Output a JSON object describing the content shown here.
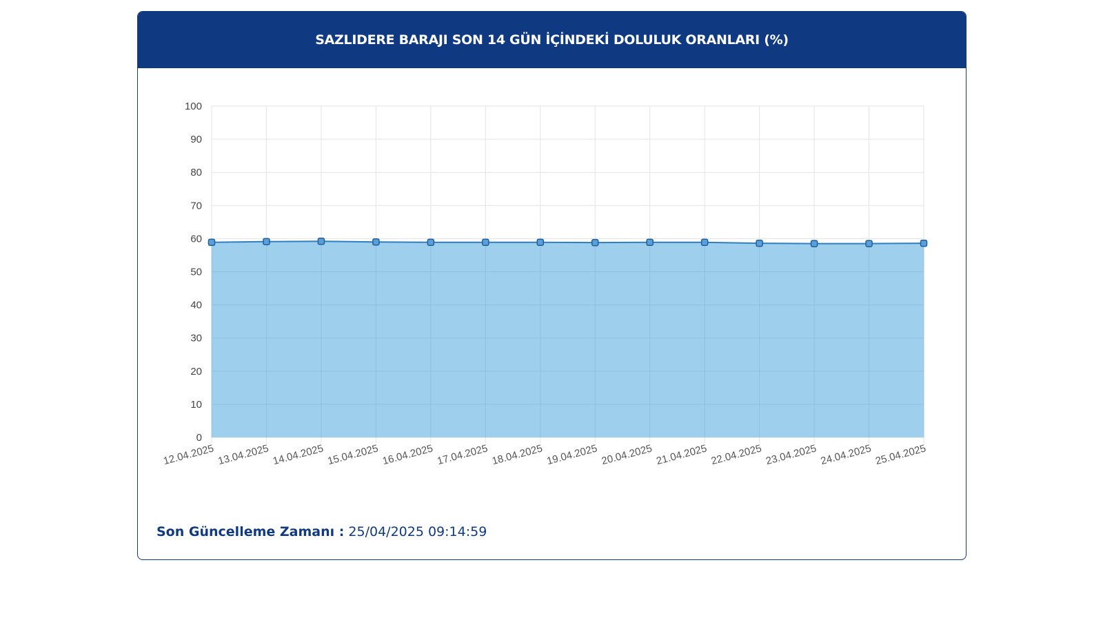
{
  "header": {
    "title": "SAZLIDERE BARAJI SON 14 GÜN İÇİNDEKİ DOLULUK ORANLARI (%)"
  },
  "footer": {
    "label": "Son Güncelleme Zamanı :",
    "value": "25/04/2025 09:14:59"
  },
  "colors": {
    "header_bg": "#0f3a82",
    "area_fill": "#9ecfec",
    "line": "#2f7fc0",
    "marker_fill": "#5a9fd8",
    "marker_stroke": "#1f5f9e",
    "grid": "#e3e3e3"
  },
  "chart_data": {
    "type": "area",
    "title": "SAZLIDERE BARAJI SON 14 GÜN İÇİNDEKİ DOLULUK ORANLARI (%)",
    "xlabel": "",
    "ylabel": "",
    "grid": true,
    "ylim": [
      0,
      100
    ],
    "yticks": [
      0,
      10,
      20,
      30,
      40,
      50,
      60,
      70,
      80,
      90,
      100
    ],
    "categories": [
      "12.04.2025",
      "13.04.2025",
      "14.04.2025",
      "15.04.2025",
      "16.04.2025",
      "17.04.2025",
      "18.04.2025",
      "19.04.2025",
      "20.04.2025",
      "21.04.2025",
      "22.04.2025",
      "23.04.2025",
      "24.04.2025",
      "25.04.2025"
    ],
    "series": [
      {
        "values": [
          58.9,
          59.1,
          59.2,
          59.0,
          58.9,
          58.9,
          58.9,
          58.8,
          58.9,
          58.9,
          58.6,
          58.5,
          58.5,
          58.6
        ]
      }
    ]
  }
}
